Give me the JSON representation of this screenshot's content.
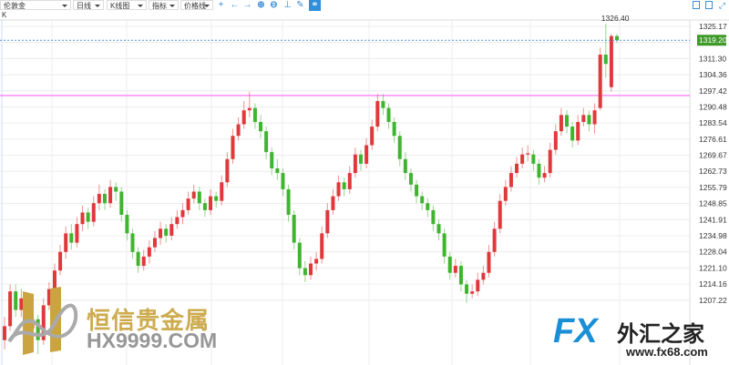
{
  "toolbar": {
    "symbol": "伦敦金",
    "period": "日线",
    "chart_type": "K线图",
    "indicator": "指标",
    "price_line": "价格线",
    "icons": [
      "crosshair-icon",
      "arrow-left-icon",
      "arrow-right-icon",
      "zoom-in-icon",
      "zoom-out-icon",
      "axis-icon",
      "pencil-icon",
      "link-icon"
    ]
  },
  "panel_label": "K",
  "window_icons": [
    "window-left-icon",
    "window-right-icon",
    "expand-icon"
  ],
  "colors": {
    "up": "#e0383b",
    "down": "#3fb52f",
    "grid": "#ececec",
    "price_line": "#4a90e2",
    "level_line": "#ff66ff",
    "badge": "#3f9a2a"
  },
  "chart_data": {
    "type": "candlestick",
    "ylim": [
      1200,
      1332
    ],
    "y_ticks": [
      "1325.17",
      "1318.23",
      "1311.30",
      "1304.36",
      "1297.42",
      "1290.48",
      "1283.54",
      "1276.61",
      "1269.67",
      "1262.73",
      "1255.79",
      "1248.85",
      "1241.91",
      "1234.98",
      "1228.04",
      "1221.10",
      "1214.16",
      "1207.22"
    ],
    "grid": true,
    "current_price": "1319.20",
    "high_label": "1326.40",
    "horizontal_line_price": 1295.4,
    "ohlc": [
      [
        1190,
        1200,
        1186,
        1196
      ],
      [
        1196,
        1214,
        1194,
        1211
      ],
      [
        1211,
        1214,
        1200,
        1203
      ],
      [
        1203,
        1212,
        1200,
        1208
      ],
      [
        1208,
        1210,
        1192,
        1195
      ],
      [
        1195,
        1202,
        1190,
        1199
      ],
      [
        1199,
        1201,
        1184,
        1190
      ],
      [
        1190,
        1208,
        1188,
        1205
      ],
      [
        1205,
        1215,
        1203,
        1212
      ],
      [
        1212,
        1223,
        1209,
        1220
      ],
      [
        1220,
        1231,
        1218,
        1228
      ],
      [
        1228,
        1239,
        1225,
        1236
      ],
      [
        1236,
        1240,
        1229,
        1232
      ],
      [
        1232,
        1243,
        1230,
        1240
      ],
      [
        1240,
        1248,
        1237,
        1245
      ],
      [
        1245,
        1247,
        1238,
        1241
      ],
      [
        1241,
        1252,
        1239,
        1249
      ],
      [
        1249,
        1257,
        1246,
        1253
      ],
      [
        1253,
        1255,
        1246,
        1249
      ],
      [
        1249,
        1259,
        1247,
        1256
      ],
      [
        1256,
        1258,
        1250,
        1254
      ],
      [
        1254,
        1256,
        1241,
        1244
      ],
      [
        1244,
        1246,
        1233,
        1236
      ],
      [
        1236,
        1238,
        1225,
        1228
      ],
      [
        1228,
        1230,
        1219,
        1222
      ],
      [
        1222,
        1229,
        1220,
        1226
      ],
      [
        1226,
        1233,
        1223,
        1230
      ],
      [
        1230,
        1237,
        1228,
        1234
      ],
      [
        1234,
        1241,
        1231,
        1238
      ],
      [
        1238,
        1240,
        1232,
        1235
      ],
      [
        1235,
        1243,
        1233,
        1240
      ],
      [
        1240,
        1246,
        1238,
        1243
      ],
      [
        1243,
        1249,
        1240,
        1246
      ],
      [
        1246,
        1254,
        1244,
        1251
      ],
      [
        1251,
        1257,
        1249,
        1254
      ],
      [
        1254,
        1256,
        1246,
        1249
      ],
      [
        1249,
        1251,
        1243,
        1246
      ],
      [
        1246,
        1255,
        1244,
        1252
      ],
      [
        1252,
        1254,
        1247,
        1250
      ],
      [
        1250,
        1261,
        1248,
        1258
      ],
      [
        1258,
        1271,
        1256,
        1268
      ],
      [
        1268,
        1281,
        1266,
        1278
      ],
      [
        1278,
        1286,
        1276,
        1283
      ],
      [
        1283,
        1293,
        1281,
        1289
      ],
      [
        1289,
        1297,
        1286,
        1290
      ],
      [
        1290,
        1292,
        1281,
        1284
      ],
      [
        1284,
        1287,
        1277,
        1280
      ],
      [
        1280,
        1282,
        1268,
        1271
      ],
      [
        1271,
        1273,
        1261,
        1264
      ],
      [
        1264,
        1268,
        1259,
        1262
      ],
      [
        1262,
        1264,
        1252,
        1255
      ],
      [
        1255,
        1257,
        1241,
        1244
      ],
      [
        1244,
        1246,
        1229,
        1232
      ],
      [
        1232,
        1234,
        1218,
        1221
      ],
      [
        1221,
        1224,
        1215,
        1218
      ],
      [
        1218,
        1226,
        1216,
        1223
      ],
      [
        1223,
        1228,
        1220,
        1225
      ],
      [
        1225,
        1239,
        1223,
        1236
      ],
      [
        1236,
        1249,
        1234,
        1246
      ],
      [
        1246,
        1255,
        1244,
        1252
      ],
      [
        1252,
        1261,
        1250,
        1258
      ],
      [
        1258,
        1260,
        1252,
        1255
      ],
      [
        1255,
        1265,
        1253,
        1262
      ],
      [
        1262,
        1273,
        1260,
        1270
      ],
      [
        1270,
        1272,
        1263,
        1266
      ],
      [
        1266,
        1277,
        1264,
        1274
      ],
      [
        1274,
        1285,
        1272,
        1282
      ],
      [
        1282,
        1296,
        1280,
        1293
      ],
      [
        1293,
        1296,
        1287,
        1290
      ],
      [
        1290,
        1292,
        1281,
        1284
      ],
      [
        1284,
        1286,
        1275,
        1278
      ],
      [
        1278,
        1280,
        1265,
        1268
      ],
      [
        1268,
        1271,
        1259,
        1262
      ],
      [
        1262,
        1264,
        1254,
        1257
      ],
      [
        1257,
        1259,
        1249,
        1252
      ],
      [
        1252,
        1254,
        1246,
        1249
      ],
      [
        1249,
        1251,
        1243,
        1246
      ],
      [
        1246,
        1248,
        1237,
        1240
      ],
      [
        1240,
        1242,
        1233,
        1236
      ],
      [
        1236,
        1238,
        1223,
        1226
      ],
      [
        1226,
        1228,
        1216,
        1219
      ],
      [
        1219,
        1225,
        1217,
        1222
      ],
      [
        1222,
        1224,
        1211,
        1214
      ],
      [
        1214,
        1216,
        1206,
        1210
      ],
      [
        1210,
        1214,
        1208,
        1211
      ],
      [
        1211,
        1219,
        1209,
        1216
      ],
      [
        1216,
        1222,
        1214,
        1219
      ],
      [
        1219,
        1231,
        1217,
        1228
      ],
      [
        1228,
        1241,
        1226,
        1238
      ],
      [
        1238,
        1253,
        1236,
        1250
      ],
      [
        1250,
        1259,
        1248,
        1256
      ],
      [
        1256,
        1265,
        1254,
        1262
      ],
      [
        1262,
        1269,
        1260,
        1266
      ],
      [
        1266,
        1273,
        1264,
        1270
      ],
      [
        1270,
        1274,
        1267,
        1270.5
      ],
      [
        1270,
        1272,
        1263,
        1266
      ],
      [
        1266,
        1268,
        1257,
        1260
      ],
      [
        1260,
        1265,
        1258,
        1262
      ],
      [
        1262,
        1275,
        1260,
        1272
      ],
      [
        1272,
        1283,
        1270,
        1280
      ],
      [
        1280,
        1290,
        1278,
        1287
      ],
      [
        1287,
        1289,
        1279,
        1282
      ],
      [
        1282,
        1284,
        1273,
        1276
      ],
      [
        1276,
        1287,
        1274,
        1284
      ],
      [
        1284,
        1290,
        1282,
        1287
      ],
      [
        1287,
        1289,
        1280,
        1283
      ],
      [
        1283,
        1292,
        1279,
        1289
      ],
      [
        1290,
        1316,
        1289,
        1313
      ],
      [
        1313,
        1326.4,
        1303,
        1309
      ],
      [
        1299,
        1322,
        1297,
        1321
      ],
      [
        1321,
        1322,
        1318,
        1319.2
      ]
    ]
  },
  "watermarks": {
    "left_cn": "恒信贵金属",
    "left_url": "HX9999.COM",
    "right_logo": "FX",
    "right_cn": "外汇之家",
    "right_url": "www.fx68.com"
  }
}
